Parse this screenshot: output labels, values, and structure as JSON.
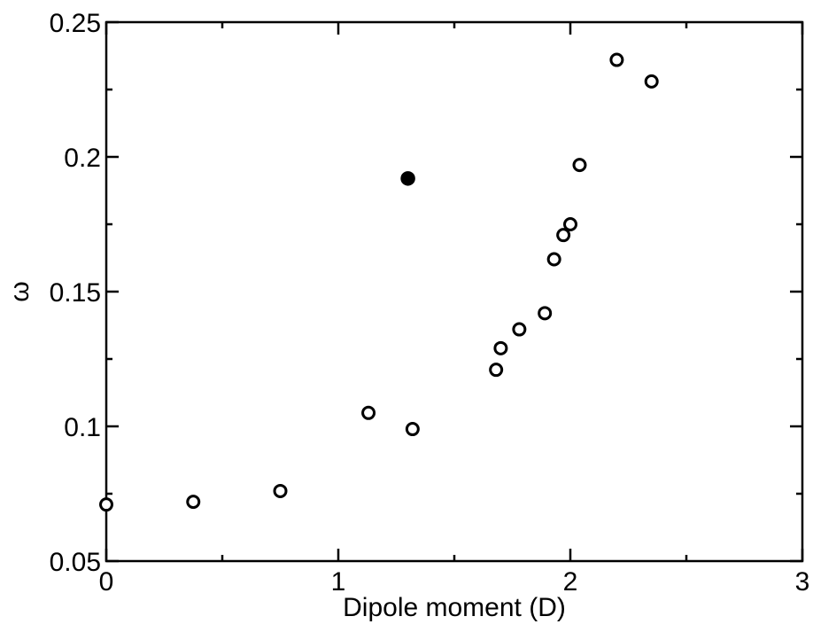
{
  "chart_data": {
    "type": "scatter",
    "title": "",
    "xlabel": "Dipole moment (D)",
    "ylabel": "ω",
    "xlim": [
      0,
      3
    ],
    "ylim": [
      0.05,
      0.25
    ],
    "xticks": [
      0,
      1,
      2,
      3
    ],
    "yticks": [
      0.05,
      0.1,
      0.15,
      0.2,
      0.25
    ],
    "xtick_labels": [
      "0",
      "1",
      "2",
      "3"
    ],
    "ytick_labels": [
      "0.05",
      "0.1",
      "0.15",
      "0.2",
      "0.25"
    ],
    "grid": false,
    "legend": "none",
    "series": [
      {
        "marker": "open-circle",
        "color": "#000000",
        "points": [
          {
            "x": 0.0,
            "y": 0.071
          },
          {
            "x": 0.375,
            "y": 0.072
          },
          {
            "x": 0.75,
            "y": 0.076
          },
          {
            "x": 1.13,
            "y": 0.105
          },
          {
            "x": 1.32,
            "y": 0.099
          },
          {
            "x": 1.68,
            "y": 0.121
          },
          {
            "x": 1.7,
            "y": 0.129
          },
          {
            "x": 1.78,
            "y": 0.136
          },
          {
            "x": 1.89,
            "y": 0.142
          },
          {
            "x": 1.93,
            "y": 0.162
          },
          {
            "x": 1.97,
            "y": 0.171
          },
          {
            "x": 2.0,
            "y": 0.175
          },
          {
            "x": 2.04,
            "y": 0.197
          },
          {
            "x": 2.2,
            "y": 0.236
          },
          {
            "x": 2.35,
            "y": 0.228
          }
        ]
      },
      {
        "marker": "filled-circle",
        "color": "#000000",
        "points": [
          {
            "x": 1.3,
            "y": 0.192
          }
        ]
      }
    ]
  }
}
